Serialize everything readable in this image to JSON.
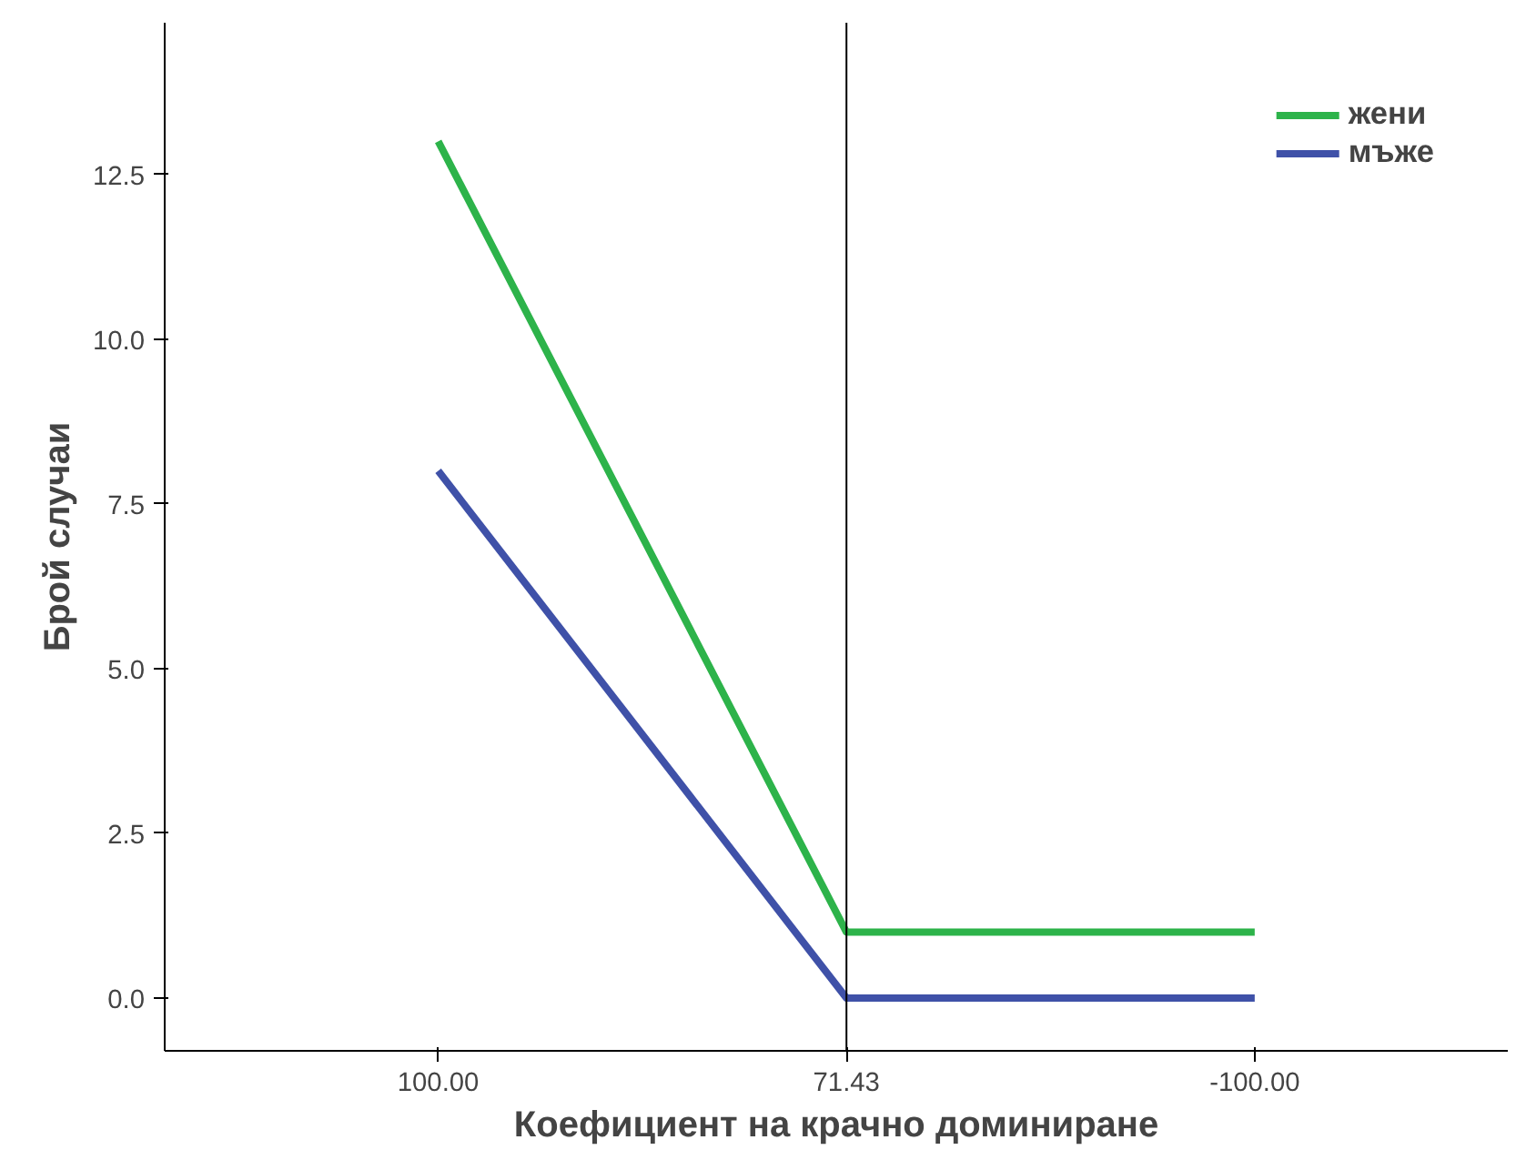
{
  "chart_data": {
    "type": "line",
    "xlabel": "Коефициент на крачно доминиране",
    "ylabel": "Брой случаи",
    "categories": [
      "100.00",
      "71.43",
      "-100.00"
    ],
    "series": [
      {
        "name": "жени",
        "color": "#2db34a",
        "values": [
          13,
          1,
          1
        ]
      },
      {
        "name": "мъже",
        "color": "#3f51a8",
        "values": [
          8,
          0,
          0
        ]
      }
    ],
    "ylim": [
      -0.8,
      14.8
    ],
    "yticks": [
      {
        "value": 0,
        "label": "0.0"
      },
      {
        "value": 2.5,
        "label": "2.5"
      },
      {
        "value": 5,
        "label": "5.0"
      },
      {
        "value": 7.5,
        "label": "7.5"
      },
      {
        "value": 10,
        "label": "10.0"
      },
      {
        "value": 12.5,
        "label": "12.5"
      }
    ],
    "ref_lines": [
      {
        "axis": "x",
        "value": "71.43",
        "color": "#000000"
      }
    ],
    "grid": false,
    "legend": "top right",
    "marker": "none",
    "line_style": "solid"
  }
}
